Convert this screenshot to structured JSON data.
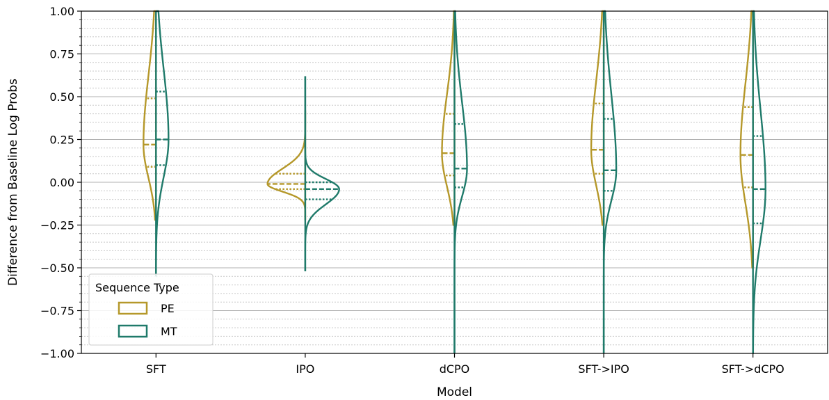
{
  "chart_data": {
    "type": "violin",
    "title": "",
    "xlabel": "Model",
    "ylabel": "Difference from Baseline Log Probs",
    "categories": [
      "SFT",
      "IPO",
      "dCPO",
      "SFT->IPO",
      "SFT->dCPO"
    ],
    "ylim": [
      -1.0,
      1.0
    ],
    "yticks": [
      "−1.00",
      "−0.75",
      "−0.50",
      "−0.25",
      "0.00",
      "0.25",
      "0.50",
      "0.75",
      "1.00"
    ],
    "ytick_values": [
      -1.0,
      -0.75,
      -0.5,
      -0.25,
      0.0,
      0.25,
      0.5,
      0.75,
      1.0
    ],
    "grid": {
      "major": true,
      "minor": true
    },
    "legend": {
      "title": "Sequence Type",
      "placement": "lower-left",
      "entries": [
        "PE",
        "MT"
      ]
    },
    "series": [
      {
        "name": "PE",
        "side": "left",
        "color": "#b5982a",
        "violins": [
          {
            "category": "SFT",
            "q1": 0.09,
            "median": 0.22,
            "q3": 0.49,
            "ymin": -0.22,
            "ymax": 1.0
          },
          {
            "category": "IPO",
            "q1": -0.04,
            "median": -0.01,
            "q3": 0.05,
            "ymin": -0.22,
            "ymax": 0.42
          },
          {
            "category": "dCPO",
            "q1": 0.04,
            "median": 0.17,
            "q3": 0.4,
            "ymin": -0.25,
            "ymax": 1.0
          },
          {
            "category": "SFT->IPO",
            "q1": 0.05,
            "median": 0.19,
            "q3": 0.46,
            "ymin": -0.25,
            "ymax": 1.0
          },
          {
            "category": "SFT->dCPO",
            "q1": -0.03,
            "median": 0.16,
            "q3": 0.44,
            "ymin": -0.5,
            "ymax": 1.0
          }
        ]
      },
      {
        "name": "MT",
        "side": "right",
        "color": "#1f7a6a",
        "violins": [
          {
            "category": "SFT",
            "q1": 0.1,
            "median": 0.25,
            "q3": 0.53,
            "ymin": -0.55,
            "ymax": 1.0
          },
          {
            "category": "IPO",
            "q1": -0.1,
            "median": -0.04,
            "q3": 0.0,
            "ymin": -0.52,
            "ymax": 0.62
          },
          {
            "category": "dCPO",
            "q1": -0.03,
            "median": 0.08,
            "q3": 0.34,
            "ymin": -1.0,
            "ymax": 1.0
          },
          {
            "category": "SFT->IPO",
            "q1": -0.05,
            "median": 0.07,
            "q3": 0.37,
            "ymin": -1.0,
            "ymax": 1.0
          },
          {
            "category": "SFT->dCPO",
            "q1": -0.24,
            "median": -0.04,
            "q3": 0.27,
            "ymin": -1.0,
            "ymax": 1.0
          }
        ]
      }
    ]
  }
}
